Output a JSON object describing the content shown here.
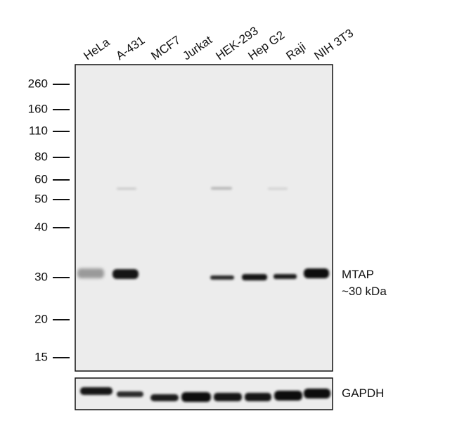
{
  "lanes": [
    "HeLa",
    "A-431",
    "MCF7",
    "Jurkat",
    "HEK-293",
    "Hep G2",
    "Raji",
    "NIH 3T3"
  ],
  "markers": [
    "260",
    "160",
    "110",
    "80",
    "60",
    "50",
    "40",
    "30",
    "20",
    "15"
  ],
  "target": {
    "name": "MTAP",
    "size": "~30 kDa"
  },
  "loading_control": "GAPDH"
}
